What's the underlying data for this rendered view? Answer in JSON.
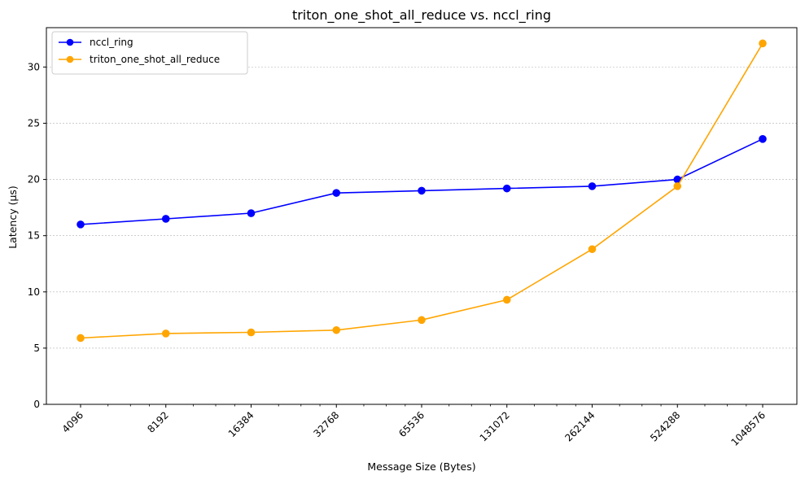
{
  "chart_data": {
    "type": "line",
    "title": "triton_one_shot_all_reduce vs. nccl_ring",
    "xlabel": "Message Size (Bytes)",
    "ylabel": "Latency (µs)",
    "x_scale": "log2",
    "x": [
      4096,
      8192,
      16384,
      32768,
      65536,
      131072,
      262144,
      524288,
      1048576
    ],
    "x_tick_labels": [
      "4096",
      "8192",
      "16384",
      "32768",
      "65536",
      "131072",
      "262144",
      "524288",
      "1048576"
    ],
    "x_tick_rotation_deg": -45,
    "ylim": [
      0,
      33.5
    ],
    "y_ticks": [
      0,
      5,
      10,
      15,
      20,
      25,
      30
    ],
    "y_tick_labels": [
      "0",
      "5",
      "10",
      "15",
      "20",
      "25",
      "30"
    ],
    "grid": "y-axis, dashed",
    "legend_position": "top-left",
    "series": [
      {
        "name": "nccl_ring",
        "color": "#0000ff",
        "marker": "circle",
        "values": [
          16.0,
          16.5,
          17.0,
          18.8,
          19.0,
          19.2,
          19.4,
          20.0,
          23.6
        ]
      },
      {
        "name": "triton_one_shot_all_reduce",
        "color": "#ffa500",
        "marker": "circle",
        "values": [
          5.9,
          6.3,
          6.4,
          6.6,
          7.5,
          9.3,
          13.8,
          19.4,
          32.1
        ]
      }
    ]
  }
}
